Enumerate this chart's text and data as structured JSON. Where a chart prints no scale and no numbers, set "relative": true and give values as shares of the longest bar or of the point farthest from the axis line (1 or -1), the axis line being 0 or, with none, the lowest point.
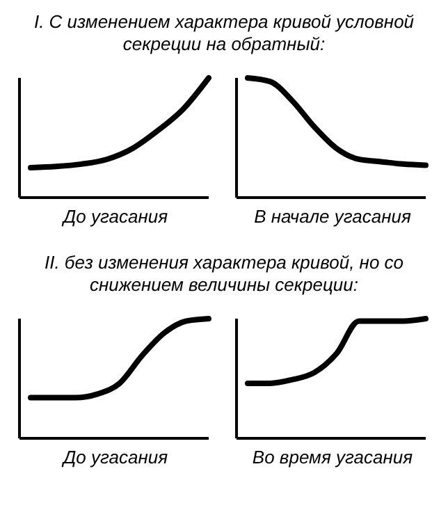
{
  "chart_data": [
    {
      "type": "line",
      "title": "I. С изменением характера кривой условной секреции на обратный:",
      "xlabel": "До угасания",
      "relative": true,
      "categories": [
        null,
        null,
        null,
        null,
        null,
        null,
        null,
        null
      ],
      "series": [
        {
          "color": "#000000",
          "values": [
            0.25,
            0.26,
            0.28,
            0.32,
            0.41,
            0.56,
            0.74,
            1
          ]
        }
      ]
    },
    {
      "type": "line",
      "xlabel": "В начале угасания",
      "relative": true,
      "categories": [
        null,
        null,
        null,
        null,
        null,
        null,
        null,
        null,
        null
      ],
      "series": [
        {
          "color": "#000000",
          "values": [
            1,
            0.97,
            0.81,
            0.59,
            0.41,
            0.32,
            0.3,
            0.28,
            0.27
          ]
        }
      ]
    },
    {
      "type": "line",
      "title": "II. без изменения характера кривой, но со снижением величины секреции:",
      "xlabel": "До угасания",
      "relative": true,
      "categories": [
        null,
        null,
        null,
        null,
        null,
        null,
        null,
        null,
        null
      ],
      "series": [
        {
          "color": "#000000",
          "values": [
            0.34,
            0.34,
            0.34,
            0.37,
            0.46,
            0.69,
            0.88,
            0.98,
            1
          ]
        }
      ]
    },
    {
      "type": "line",
      "xlabel": "Во время угасания",
      "relative": true,
      "categories": [
        null,
        null,
        null,
        null,
        null,
        null,
        null,
        null,
        null
      ],
      "series": [
        {
          "color": "#000000",
          "values": [
            0.46,
            0.46,
            0.49,
            0.55,
            0.71,
            0.98,
            0.98,
            0.98,
            1
          ]
        }
      ]
    }
  ]
}
